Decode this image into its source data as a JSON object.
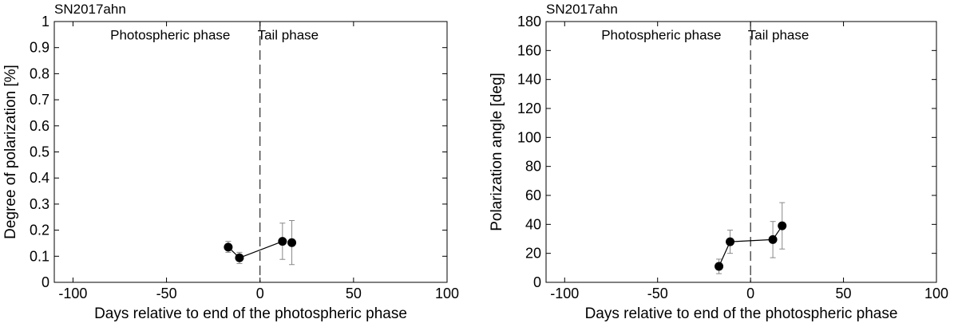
{
  "chart_data": [
    {
      "type": "scatter",
      "title": "SN2017ahn",
      "xlabel": "Days relative to end of the photospheric phase",
      "ylabel": "Degree of polarization [%]",
      "xlim": [
        -110,
        100
      ],
      "ylim": [
        0,
        1
      ],
      "xticks": [
        -100,
        -50,
        0,
        50,
        100
      ],
      "yticks": [
        0,
        0.1,
        0.2,
        0.3,
        0.4,
        0.5,
        0.6,
        0.7,
        0.8,
        0.9,
        1
      ],
      "x_tick_labels": [
        "-100",
        "-50",
        "0",
        "50",
        "100"
      ],
      "y_tick_labels": [
        "0",
        "0.1",
        "0.2",
        "0.3",
        "0.4",
        "0.5",
        "0.6",
        "0.7",
        "0.8",
        "0.9",
        "1"
      ],
      "grid": false,
      "divider_x": 0,
      "annotations": [
        {
          "text": "Photospheric phase",
          "x": -48,
          "y": 0.95
        },
        {
          "text": "Tail phase",
          "x": 15,
          "y": 0.95
        }
      ],
      "series": [
        {
          "x": [
            -17,
            -11,
            12,
            17
          ],
          "y": [
            0.135,
            0.094,
            0.157,
            0.152
          ],
          "err_low": [
            0.115,
            0.072,
            0.088,
            0.068
          ],
          "err_high": [
            0.157,
            0.115,
            0.227,
            0.237
          ],
          "segments": [
            [
              0,
              1
            ],
            [
              1,
              2
            ]
          ]
        }
      ],
      "colors": {
        "marker": "#000000",
        "error_bar": "#888888",
        "line": "#000000"
      }
    },
    {
      "type": "scatter",
      "title": "SN2017ahn",
      "xlabel": "Days relative to end of the photospheric phase",
      "ylabel": "Polarization angle [deg]",
      "xlim": [
        -110,
        100
      ],
      "ylim": [
        0,
        180
      ],
      "xticks": [
        -100,
        -50,
        0,
        50,
        100
      ],
      "yticks": [
        0,
        20,
        40,
        60,
        80,
        100,
        120,
        140,
        160,
        180
      ],
      "x_tick_labels": [
        "-100",
        "-50",
        "0",
        "50",
        "100"
      ],
      "y_tick_labels": [
        "0",
        "20",
        "40",
        "60",
        "80",
        "100",
        "120",
        "140",
        "160",
        "180"
      ],
      "grid": false,
      "divider_x": 0,
      "annotations": [
        {
          "text": "Photospheric phase",
          "x": -48,
          "y": 171
        },
        {
          "text": "Tail phase",
          "x": 15,
          "y": 171
        }
      ],
      "series": [
        {
          "x": [
            -17,
            -11,
            12,
            17
          ],
          "y": [
            11,
            28,
            29.5,
            39
          ],
          "err_low": [
            6,
            20,
            17,
            23
          ],
          "err_high": [
            16,
            36,
            42,
            55
          ],
          "segments": [
            [
              0,
              1
            ],
            [
              1,
              2
            ],
            [
              2,
              3
            ]
          ]
        }
      ],
      "colors": {
        "marker": "#000000",
        "error_bar": "#888888",
        "line": "#000000"
      }
    }
  ]
}
